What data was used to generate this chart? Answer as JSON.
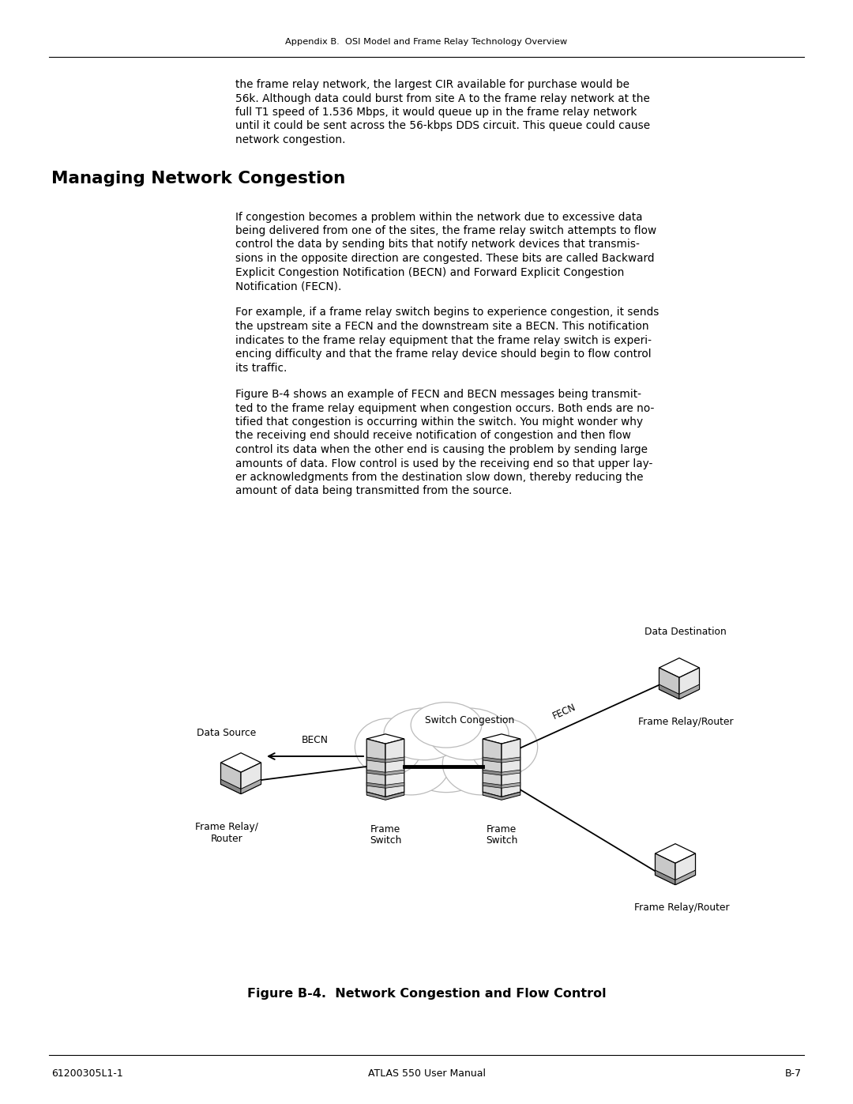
{
  "bg_color": "#ffffff",
  "page_width": 10.8,
  "page_height": 13.97,
  "header_text": "Appendix B.  OSI Model and Frame Relay Technology Overview",
  "footer_left": "61200305L1-1",
  "footer_center": "ATLAS 550 User Manual",
  "footer_right": "B-7",
  "section_title": "Managing Network Congestion",
  "para1_lines": [
    "the frame relay network, the largest CIR available for purchase would be",
    "56k. Although data could burst from site A to the frame relay network at the",
    "full T1 speed of 1.536 Mbps, it would queue up in the frame relay network",
    "until it could be sent across the 56-kbps DDS circuit. This queue could cause",
    "network congestion."
  ],
  "para2_lines": [
    "If congestion becomes a problem within the network due to excessive data",
    "being delivered from one of the sites, the frame relay switch attempts to flow",
    "control the data by sending bits that notify network devices that transmis-",
    "sions in the opposite direction are congested. These bits are called Backward",
    "Explicit Congestion Notification (BECN) and Forward Explicit Congestion",
    "Notification (FECN)."
  ],
  "para3_lines": [
    "For example, if a frame relay switch begins to experience congestion, it sends",
    "the upstream site a FECN and the downstream site a BECN. This notification",
    "indicates to the frame relay equipment that the frame relay switch is experi-",
    "encing difficulty and that the frame relay device should begin to flow control",
    "its traffic."
  ],
  "para4_lines": [
    "Figure B-4 shows an example of FECN and BECN messages being transmit-",
    "ted to the frame relay equipment when congestion occurs. Both ends are no-",
    "tified that congestion is occurring within the switch. You might wonder why",
    "the receiving end should receive notification of congestion and then flow",
    "control its data when the other end is causing the problem by sending large",
    "amounts of data. Flow control is used by the receiving end so that upper lay-",
    "er acknowledgments from the destination slow down, thereby reducing the",
    "amount of data being transmitted from the source."
  ],
  "fig_caption": "Figure B-4.  Network Congestion and Flow Control",
  "text_color": "#000000",
  "line_color": "#000000"
}
